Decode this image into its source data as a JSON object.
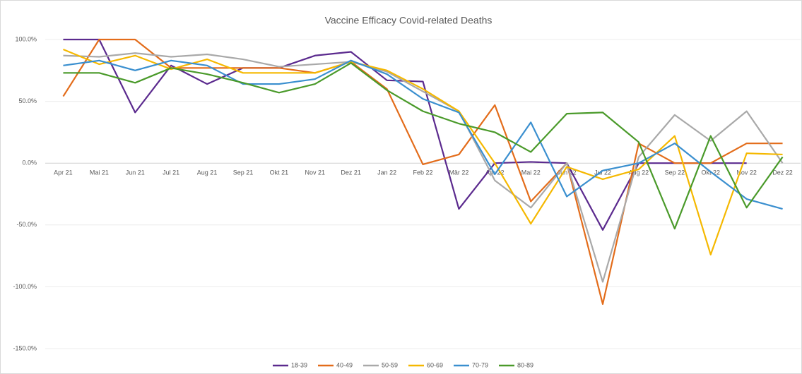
{
  "chart_data": {
    "type": "line",
    "title": "Vaccine Efficacy Covid-related Deaths",
    "categories": [
      "Apr 21",
      "Mai 21",
      "Jun 21",
      "Jul 21",
      "Aug 21",
      "Sep 21",
      "Okt 21",
      "Nov 21",
      "Dez 21",
      "Jan 22",
      "Feb 22",
      "Mär 22",
      "Apr 22",
      "Mai 22",
      "Jun 22",
      "Jul 22",
      "Aug 22",
      "Sep 22",
      "Okt 22",
      "Nov 22",
      "Dez 22"
    ],
    "series": [
      {
        "name": "18-39",
        "color": "#5b2a8e",
        "values": [
          100,
          100,
          41,
          79,
          64,
          77,
          77,
          87,
          90,
          67,
          66,
          -37,
          0,
          1,
          0,
          -54,
          0,
          0,
          0,
          0,
          null
        ]
      },
      {
        "name": "40-49",
        "color": "#e36c1a",
        "values": [
          54,
          100,
          100,
          77,
          77,
          77,
          77,
          73,
          82,
          60,
          -1,
          7,
          47,
          -31,
          0,
          -114,
          16,
          0,
          0,
          16,
          16
        ]
      },
      {
        "name": "50-59",
        "color": "#a9a9a9",
        "values": [
          87,
          86,
          89,
          86,
          88,
          84,
          78,
          80,
          82,
          74,
          58,
          42,
          -14,
          -36,
          0,
          -96,
          5,
          39,
          18,
          42,
          0
        ]
      },
      {
        "name": "60-69",
        "color": "#f5b800",
        "values": [
          92,
          80,
          87,
          76,
          84,
          73,
          73,
          73,
          82,
          75,
          60,
          42,
          0,
          -49,
          -3,
          -13,
          -5,
          22,
          -74,
          8,
          7
        ]
      },
      {
        "name": "70-79",
        "color": "#3a8fcf",
        "values": [
          79,
          83,
          75,
          83,
          79,
          64,
          64,
          68,
          83,
          72,
          52,
          41,
          -9,
          33,
          -27,
          -6,
          0,
          16,
          -7,
          -29,
          -37
        ]
      },
      {
        "name": "80-89",
        "color": "#4a9a2a",
        "values": [
          73,
          73,
          65,
          77,
          72,
          65,
          57,
          64,
          81,
          59,
          42,
          32,
          25,
          9,
          40,
          41,
          17,
          -53,
          22,
          -36,
          5
        ]
      }
    ],
    "ylim": [
      -150,
      100
    ],
    "yticks": [
      {
        "value": -150,
        "label": "-150.0%"
      },
      {
        "value": -100,
        "label": "-100.0%"
      },
      {
        "value": -50,
        "label": "-50.0%"
      },
      {
        "value": 0,
        "label": "0.0%"
      },
      {
        "value": 50,
        "label": "50.0%"
      },
      {
        "value": 100,
        "label": "100.0%"
      }
    ],
    "grid": true,
    "legend": "bottom"
  }
}
